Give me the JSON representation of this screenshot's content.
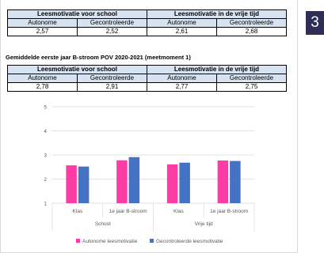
{
  "page_badge": "3",
  "table1": {
    "group_headers": [
      "Leesmotivatie voor school",
      "Leesmotivatie in de vrije tijd"
    ],
    "sub_headers": [
      "Autonome",
      "Gecontroleerde",
      "Autonome",
      "Gecontroleerde"
    ],
    "values": [
      "2,57",
      "2,52",
      "2,61",
      "2,68"
    ]
  },
  "section_heading": "Gemiddelde eerste jaar B-stroom POV 2020-2021 (meetmoment 1)",
  "table2": {
    "group_headers": [
      "Leesmotivatie voor school",
      "Leesmotivatie in de vrije tijd"
    ],
    "sub_headers": [
      "Autonome",
      "Gecontroleerde",
      "Autonome",
      "Gecontroleerde"
    ],
    "values": [
      "2,78",
      "2,91",
      "2,77",
      "2,75"
    ]
  },
  "chart_data": {
    "type": "bar",
    "categories": [
      "Klas",
      "1e jaar B-stroom",
      "Klas",
      "1e jaar B-stroom"
    ],
    "groups": [
      "School",
      "Vrije tijd"
    ],
    "series": [
      {
        "name": "Autonome leesmotivatie",
        "color": "#ff3ca5",
        "values": [
          2.57,
          2.78,
          2.61,
          2.77
        ]
      },
      {
        "name": "Gecontroleerde leesmotivatie",
        "color": "#4472c4",
        "values": [
          2.52,
          2.91,
          2.68,
          2.75
        ]
      }
    ],
    "yticks": [
      "1",
      "2",
      "3",
      "4",
      "5"
    ],
    "ylim": [
      1,
      5
    ],
    "grid": true,
    "legend_position": "bottom"
  }
}
